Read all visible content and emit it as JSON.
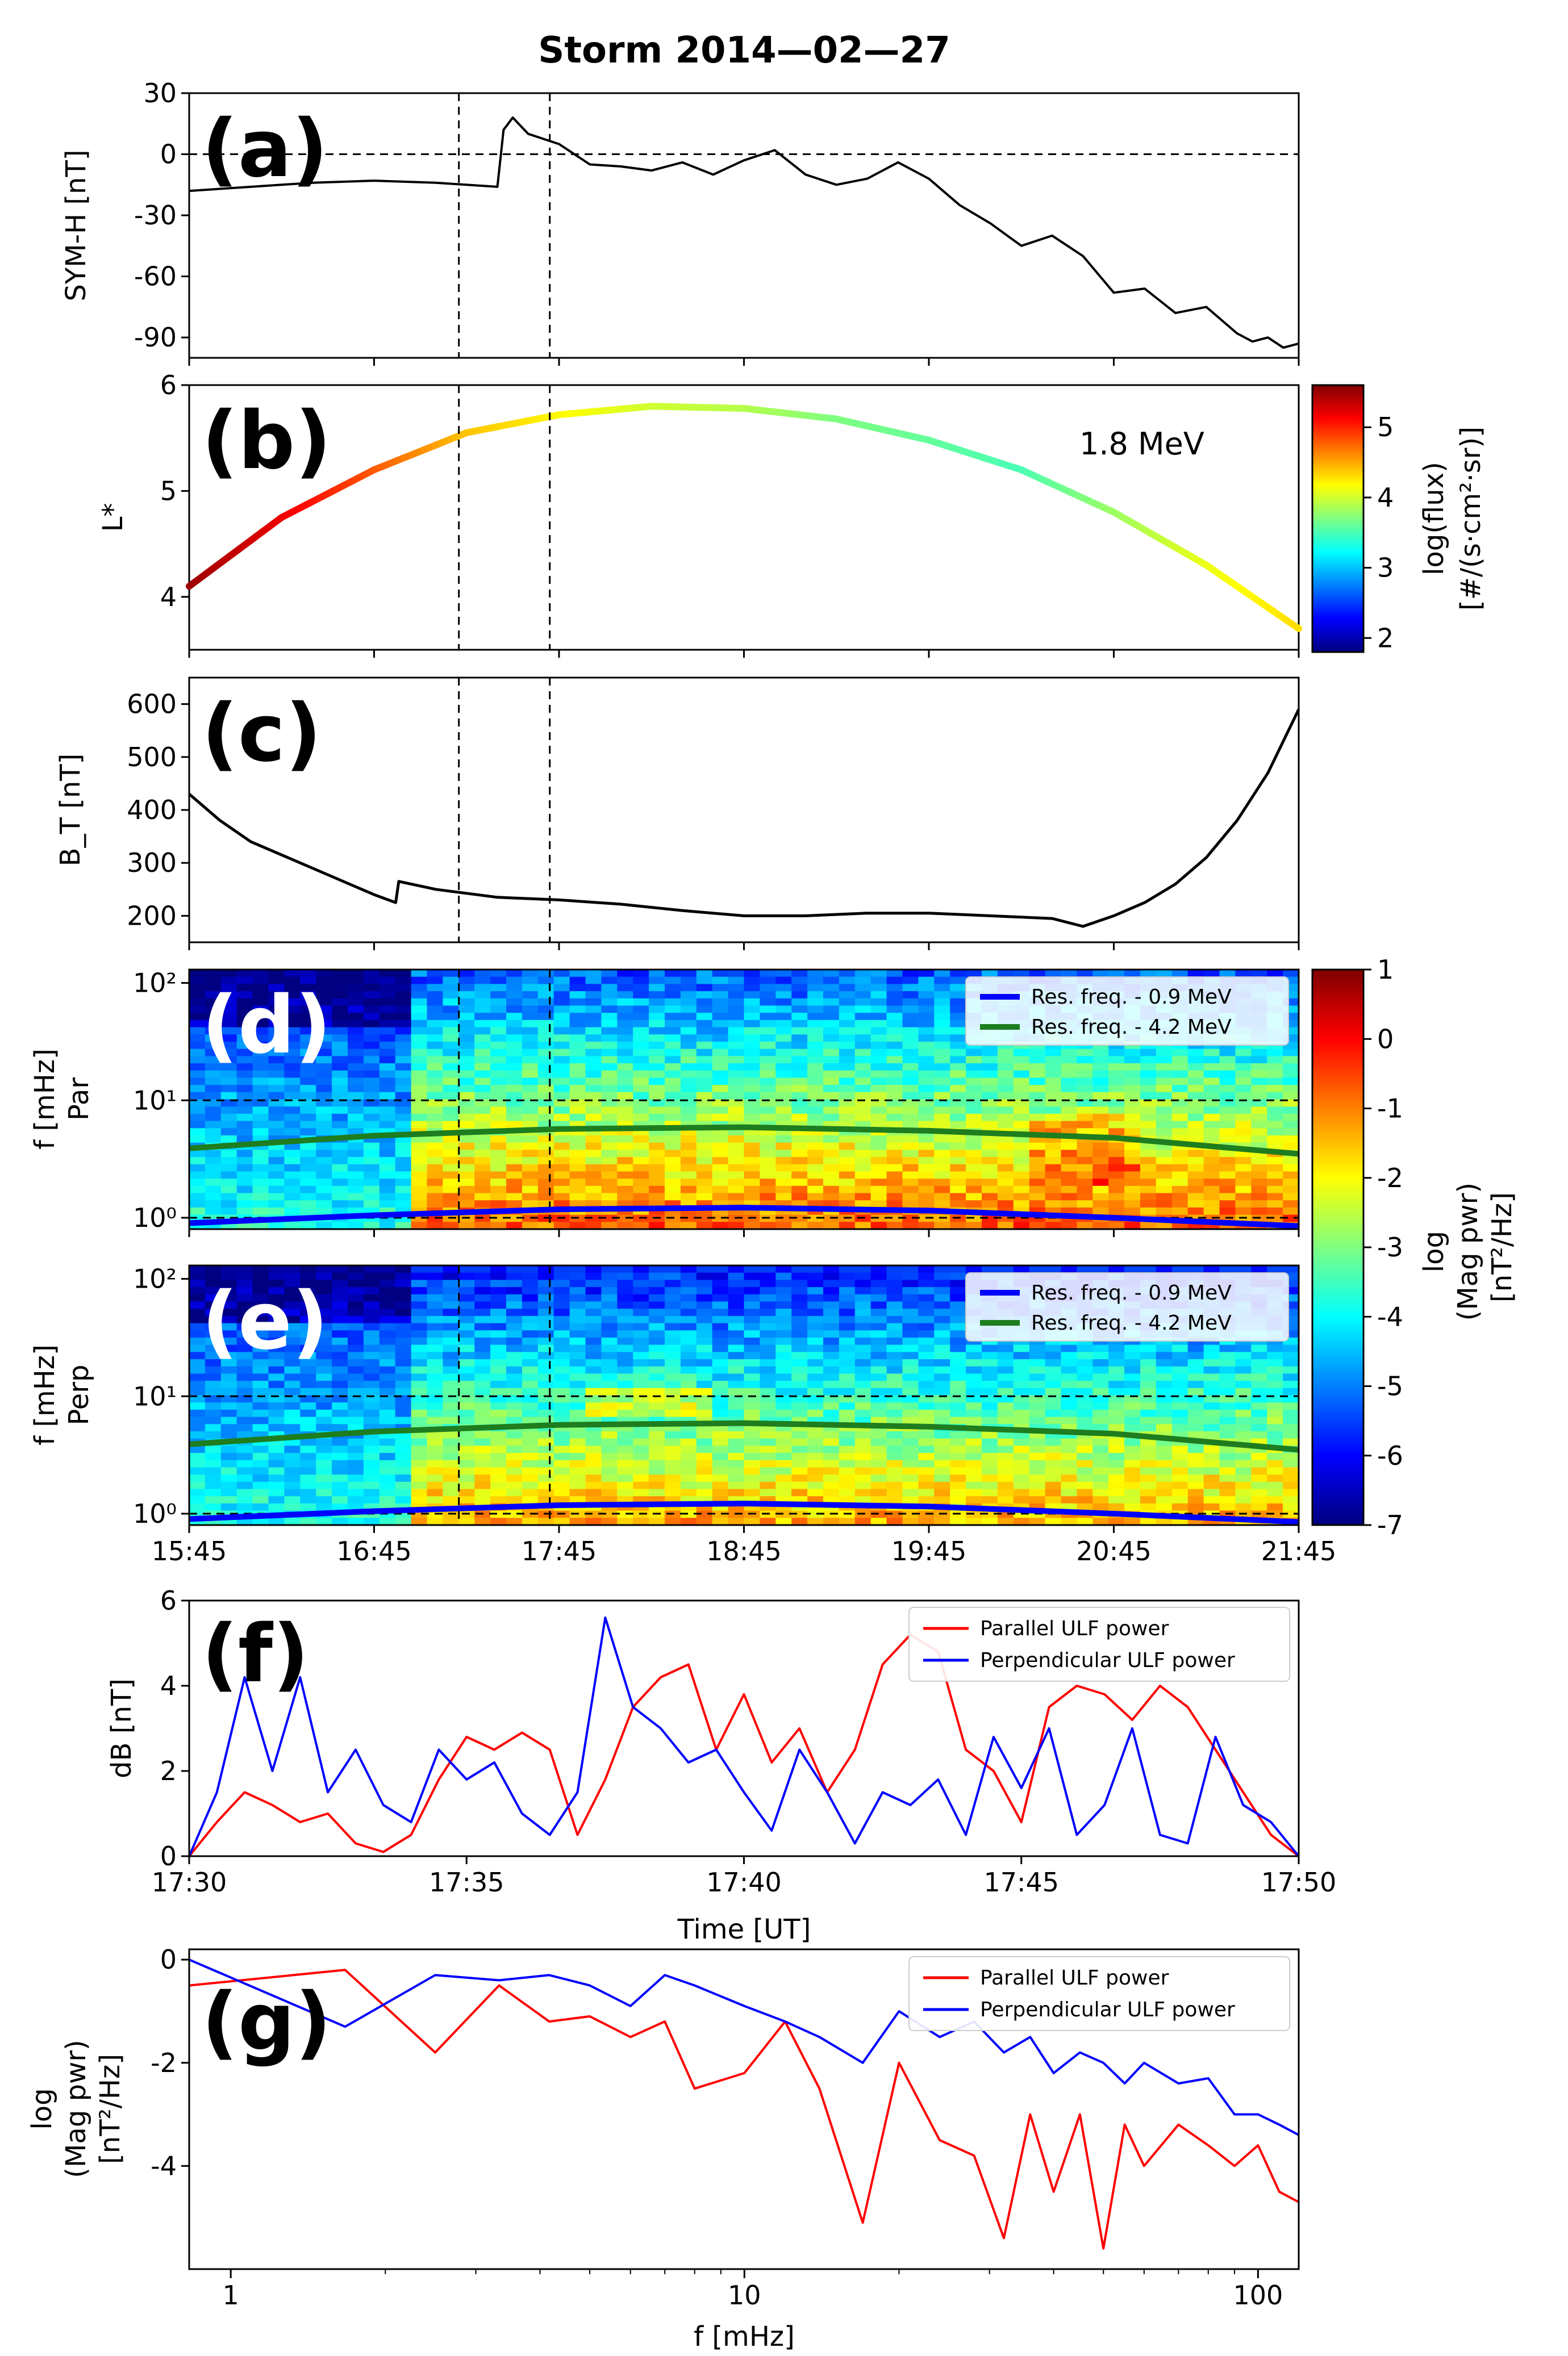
{
  "title": "Storm 2014—02—27",
  "colors": {
    "red": "#ff0000",
    "blue": "#0000ff",
    "green": "#1e7d1e",
    "black": "#000000"
  },
  "chart_data": [
    {
      "id": "a",
      "type": "line",
      "panel_label": "(a)",
      "ylabel": "SYM-H [nT]",
      "ylim": [
        -100,
        30
      ],
      "yticks": [
        "30",
        "0",
        "-30",
        "-60",
        "-90"
      ],
      "xlim": [
        0,
        360
      ],
      "hline": 0,
      "vlines": [
        87.5,
        117
      ],
      "x": [
        0,
        20,
        40,
        60,
        80,
        100,
        102,
        105,
        110,
        120,
        130,
        140,
        150,
        160,
        170,
        180,
        190,
        200,
        210,
        220,
        230,
        240,
        250,
        260,
        270,
        280,
        290,
        300,
        310,
        320,
        330,
        340,
        345,
        350,
        355,
        360
      ],
      "y": [
        -18,
        -16,
        -14,
        -13,
        -14,
        -16,
        12,
        18,
        10,
        5,
        -5,
        -6,
        -8,
        -4,
        -10,
        -3,
        2,
        -10,
        -15,
        -12,
        -4,
        -12,
        -25,
        -34,
        -45,
        -40,
        -50,
        -68,
        -66,
        -78,
        -75,
        -88,
        -92,
        -90,
        -95,
        -93
      ]
    },
    {
      "id": "b",
      "type": "line",
      "panel_label": "(b)",
      "ylabel": "L*",
      "ylim": [
        3.5,
        6
      ],
      "yticks": [
        "6",
        "5",
        "4"
      ],
      "xlim": [
        0,
        360
      ],
      "annotation": "1.8 MeV",
      "vlines": [
        87.5,
        117
      ],
      "x": [
        0,
        30,
        60,
        90,
        120,
        150,
        180,
        210,
        240,
        270,
        300,
        330,
        360
      ],
      "y": [
        4.1,
        4.75,
        5.2,
        5.55,
        5.72,
        5.8,
        5.78,
        5.68,
        5.48,
        5.2,
        4.8,
        4.3,
        3.7
      ],
      "flux_log": [
        5.5,
        5.2,
        4.8,
        4.4,
        4.2,
        4.0,
        3.9,
        3.7,
        3.6,
        3.5,
        3.8,
        4.1,
        4.3
      ],
      "colorbar": {
        "label1": "log(flux)",
        "label2": "[#/(s·cm²·sr)]",
        "range": [
          1.8,
          5.6
        ],
        "ticks": [
          "5",
          "4",
          "3",
          "2"
        ]
      }
    },
    {
      "id": "c",
      "type": "line",
      "panel_label": "(c)",
      "ylabel": "B_T [nT]",
      "ylim": [
        150,
        650
      ],
      "yticks": [
        "600",
        "500",
        "400",
        "300",
        "200"
      ],
      "xlim": [
        0,
        360
      ],
      "vlines": [
        87.5,
        117
      ],
      "x": [
        0,
        10,
        20,
        40,
        60,
        67,
        68,
        80,
        100,
        120,
        140,
        160,
        180,
        200,
        220,
        240,
        260,
        280,
        290,
        300,
        310,
        320,
        330,
        340,
        350,
        360
      ],
      "y": [
        430,
        380,
        340,
        290,
        240,
        225,
        265,
        250,
        235,
        230,
        222,
        210,
        200,
        200,
        205,
        205,
        200,
        195,
        180,
        200,
        225,
        260,
        310,
        380,
        470,
        590
      ]
    },
    {
      "id": "d",
      "type": "heatmap",
      "panel_label": "(d)",
      "ylabel_line1": "f [mHz]",
      "ylabel_line2": "Par",
      "ylog": true,
      "yticks": [
        "10²",
        "10¹",
        "10⁰"
      ],
      "legend": [
        "Res. freq. - 0.9 MeV",
        "Res. freq. - 4.2 MeV"
      ],
      "res_freq_0_9": {
        "x": [
          0,
          60,
          120,
          180,
          240,
          300,
          360
        ],
        "y": [
          0.9,
          1.05,
          1.18,
          1.22,
          1.15,
          1.0,
          0.85
        ]
      },
      "res_freq_4_2": {
        "x": [
          0,
          60,
          120,
          180,
          240,
          300,
          360
        ],
        "y": [
          3.9,
          5.0,
          5.7,
          5.9,
          5.5,
          4.8,
          3.5
        ]
      },
      "colorbar": {
        "label": "log (Mag pwr) [nT²/Hz]",
        "range": [
          -7,
          1
        ],
        "ticks": [
          "1",
          "0",
          "-1",
          "-2",
          "-3",
          "-4",
          "-5",
          "-6",
          "-7"
        ]
      }
    },
    {
      "id": "e",
      "type": "heatmap",
      "panel_label": "(e)",
      "ylabel_line1": "f [mHz]",
      "ylabel_line2": "Perp",
      "ylog": true,
      "yticks": [
        "10²",
        "10¹",
        "10⁰"
      ],
      "legend": [
        "Res. freq. - 0.9 MeV",
        "Res. freq. - 4.2 MeV"
      ],
      "xticks": [
        "15:45",
        "16:45",
        "17:45",
        "18:45",
        "19:45",
        "20:45",
        "21:45"
      ]
    },
    {
      "id": "f",
      "type": "line",
      "panel_label": "(f)",
      "ylabel": "dB [nT]",
      "xlabel": "Time [UT]",
      "ylim": [
        0,
        6
      ],
      "yticks": [
        "6",
        "4",
        "2",
        "0"
      ],
      "xticks": [
        "17:30",
        "17:35",
        "17:40",
        "17:45",
        "17:50"
      ],
      "xlim": [
        0,
        20
      ],
      "series": [
        {
          "name": "Parallel ULF power",
          "color": "#ff0000",
          "x": [
            0,
            0.5,
            1,
            1.5,
            2,
            2.5,
            3,
            3.5,
            4,
            4.5,
            5,
            5.5,
            6,
            6.5,
            7,
            7.5,
            8,
            8.5,
            9,
            9.5,
            10,
            10.5,
            11,
            11.5,
            12,
            12.5,
            13,
            13.5,
            14,
            14.5,
            15,
            15.5,
            16,
            16.5,
            17,
            17.5,
            18,
            18.5,
            19,
            19.5,
            20
          ],
          "y": [
            0,
            0.8,
            1.5,
            1.2,
            0.8,
            1,
            0.3,
            0.1,
            0.5,
            1.8,
            2.8,
            2.5,
            2.9,
            2.5,
            0.5,
            1.8,
            3.5,
            4.2,
            4.5,
            2.5,
            3.8,
            2.2,
            3,
            1.5,
            2.5,
            4.5,
            5.2,
            4.8,
            2.5,
            2,
            0.8,
            3.5,
            4,
            3.8,
            3.2,
            4,
            3.5,
            2.5,
            1.5,
            0.5,
            0
          ]
        },
        {
          "name": "Perpendicular ULF power",
          "color": "#0000ff",
          "x": [
            0,
            0.5,
            1,
            1.5,
            2,
            2.5,
            3,
            3.5,
            4,
            4.5,
            5,
            5.5,
            6,
            6.5,
            7,
            7.5,
            8,
            8.5,
            9,
            9.5,
            10,
            10.5,
            11,
            11.5,
            12,
            12.5,
            13,
            13.5,
            14,
            14.5,
            15,
            15.5,
            16,
            16.5,
            17,
            17.5,
            18,
            18.5,
            19,
            19.5,
            20
          ],
          "y": [
            0,
            1.5,
            4.2,
            2,
            4.2,
            1.5,
            2.5,
            1.2,
            0.8,
            2.5,
            1.8,
            2.2,
            1,
            0.5,
            1.5,
            5.6,
            3.5,
            3,
            2.2,
            2.5,
            1.5,
            0.6,
            2.5,
            1.5,
            0.3,
            1.5,
            1.2,
            1.8,
            0.5,
            2.8,
            1.6,
            3,
            0.5,
            1.2,
            3,
            0.5,
            0.3,
            2.8,
            1.2,
            0.8,
            0
          ]
        }
      ]
    },
    {
      "id": "g",
      "type": "line",
      "panel_label": "(g)",
      "ylabel_line1": "log",
      "ylabel_line2": "(Mag pwr)",
      "ylabel_line3": "[nT²/Hz]",
      "xlabel": "f [mHz]",
      "xlog": true,
      "xlim": [
        0.83,
        120
      ],
      "ylim": [
        -6,
        0.2
      ],
      "yticks": [
        "0",
        "-2",
        "-4"
      ],
      "xticks": [
        "1",
        "10",
        "100"
      ],
      "series": [
        {
          "name": "Parallel ULF power",
          "color": "#ff0000",
          "x": [
            0.83,
            1.67,
            2.5,
            3.33,
            4.17,
            5,
            6,
            7,
            8,
            10,
            12,
            14,
            17,
            20,
            24,
            28,
            32,
            36,
            40,
            45,
            50,
            55,
            60,
            70,
            80,
            90,
            100,
            110,
            120
          ],
          "y": [
            -0.5,
            -0.2,
            -1.8,
            -0.5,
            -1.2,
            -1.1,
            -1.5,
            -1.2,
            -2.5,
            -2.2,
            -1.2,
            -2.5,
            -5.1,
            -2,
            -3.5,
            -3.8,
            -5.4,
            -3,
            -4.5,
            -3,
            -5.6,
            -3.2,
            -4,
            -3.2,
            -3.6,
            -4,
            -3.6,
            -4.5,
            -4.7
          ]
        },
        {
          "name": "Perpendicular ULF power",
          "color": "#0000ff",
          "x": [
            0.83,
            1.67,
            2.5,
            3.33,
            4.17,
            5,
            6,
            7,
            8,
            10,
            12,
            14,
            17,
            20,
            24,
            28,
            32,
            36,
            40,
            45,
            50,
            55,
            60,
            70,
            80,
            90,
            100,
            110,
            120
          ],
          "y": [
            0,
            -1.3,
            -0.3,
            -0.4,
            -0.3,
            -0.5,
            -0.9,
            -0.3,
            -0.5,
            -0.9,
            -1.2,
            -1.5,
            -2,
            -1,
            -1.5,
            -1.2,
            -1.8,
            -1.5,
            -2.2,
            -1.8,
            -2,
            -2.4,
            -2,
            -2.4,
            -2.3,
            -3,
            -3,
            -3.2,
            -3.4
          ]
        }
      ]
    }
  ]
}
